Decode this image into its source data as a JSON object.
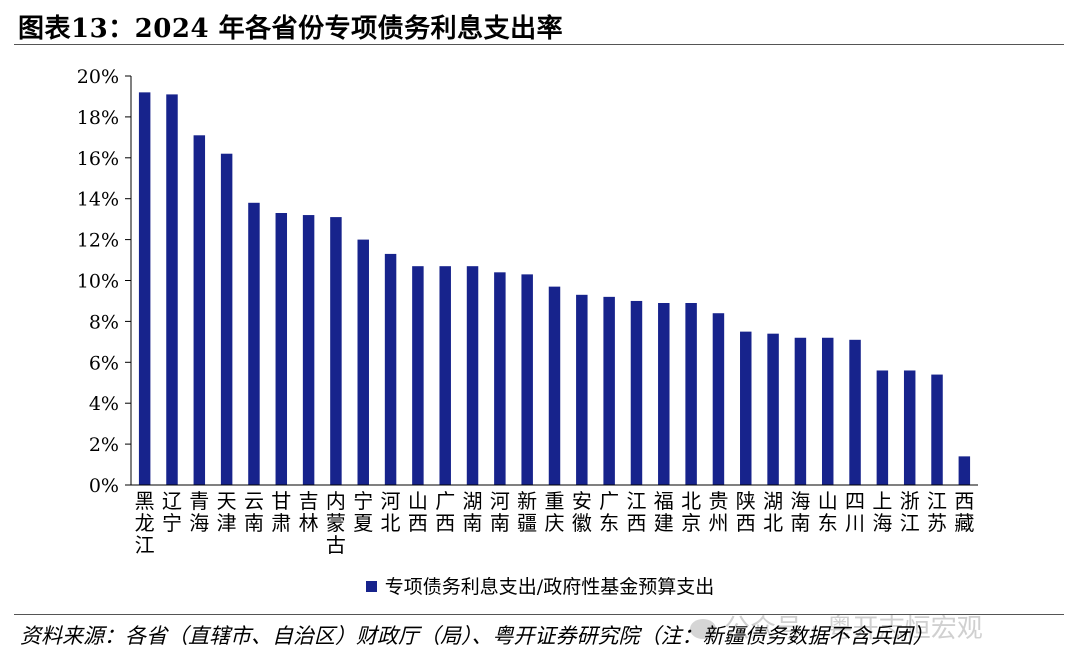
{
  "title": "图表13：2024 年各省份专项债务利息支出率",
  "legend_label": "专项债务利息支出/政府性基金预算支出",
  "source": "资料来源：各省（直辖市、自治区）财政厅（局）、粤开证券研究院（注：新疆债务数据不含兵团）",
  "watermark": "公众号 · 粤开志恒宏观",
  "colors": {
    "bar": "#17238C",
    "axis": "#000000"
  },
  "chart_data": {
    "type": "bar",
    "title": "2024 年各省份专项债务利息支出率",
    "categories": [
      "黑龙江",
      "辽宁",
      "青海",
      "天津",
      "云南",
      "甘肃",
      "吉林",
      "内蒙古",
      "宁夏",
      "河北",
      "山西",
      "广西",
      "湖南",
      "河南",
      "新疆",
      "重庆",
      "安徽",
      "广东",
      "江西",
      "福建",
      "北京",
      "贵州",
      "陕西",
      "湖北",
      "海南",
      "山东",
      "四川",
      "上海",
      "浙江",
      "江苏",
      "西藏"
    ],
    "series": [
      {
        "name": "专项债务利息支出/政府性基金预算支出",
        "values": [
          19.2,
          19.1,
          17.1,
          16.2,
          13.8,
          13.3,
          13.2,
          13.1,
          12.0,
          11.3,
          10.7,
          10.7,
          10.7,
          10.4,
          10.3,
          9.7,
          9.3,
          9.2,
          9.0,
          8.9,
          8.9,
          8.4,
          7.5,
          7.4,
          7.2,
          7.2,
          7.1,
          5.6,
          5.6,
          5.4,
          1.4
        ]
      }
    ],
    "yticks": [
      "0%",
      "2%",
      "4%",
      "6%",
      "8%",
      "10%",
      "12%",
      "14%",
      "16%",
      "18%",
      "20%"
    ],
    "ylim": [
      0,
      20
    ],
    "xlabel": "",
    "ylabel": "",
    "grid": false,
    "legend_position": "bottom"
  }
}
